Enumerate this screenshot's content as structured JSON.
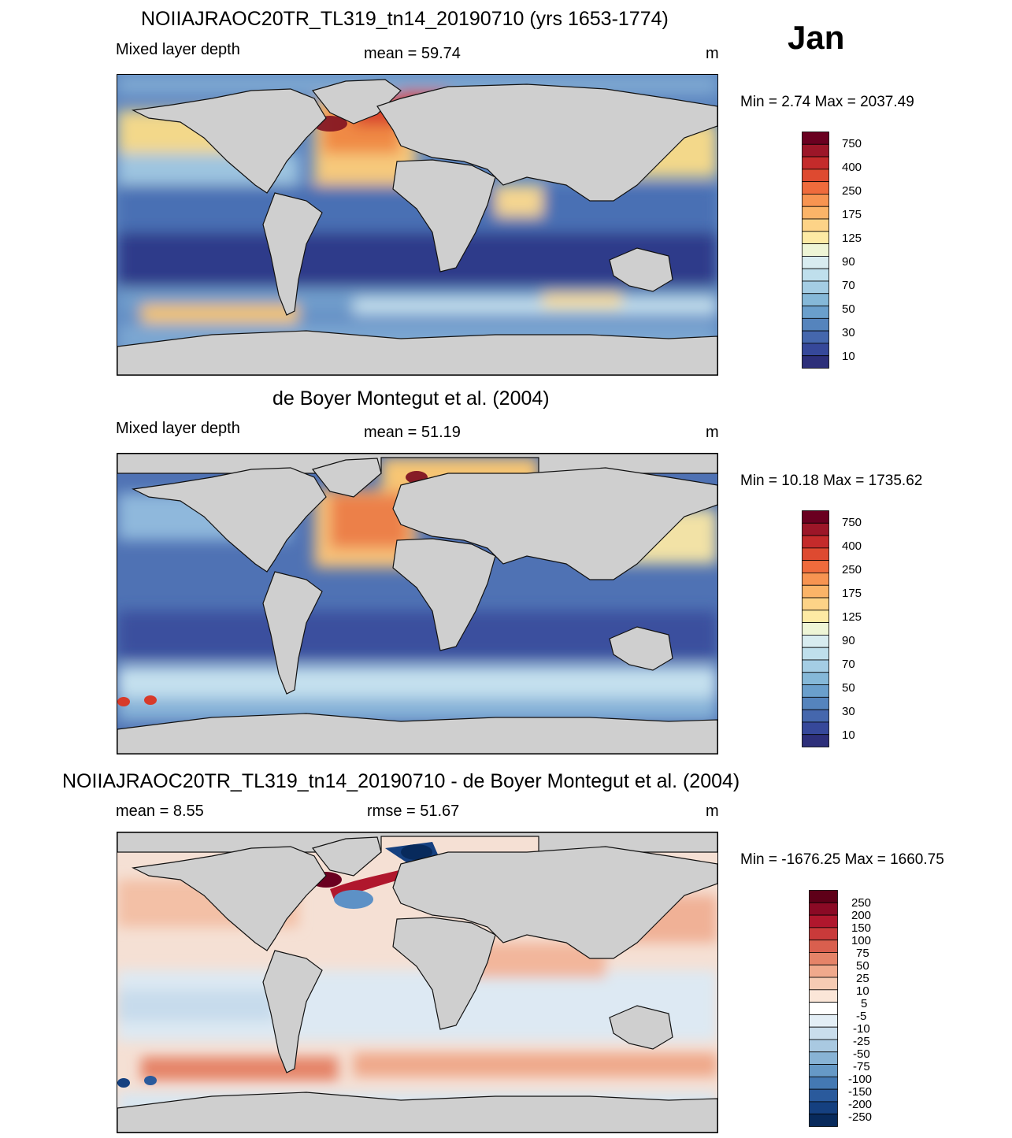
{
  "month": "Jan",
  "panels": [
    {
      "title": "NOIIAJRAOC20TR_TL319_tn14_20190710 (yrs 1653-1774)",
      "left_label": "Mixed layer depth",
      "center_label": "mean =  59.74",
      "right_label": "m",
      "minmax": "Min =   2.74 Max = 2037.49",
      "colorbar_labels": [
        "750",
        "400",
        "250",
        "175",
        "125",
        "90",
        "70",
        "50",
        "30",
        "10"
      ]
    },
    {
      "title": "de Boyer Montegut et al. (2004)",
      "left_label": "Mixed layer depth",
      "center_label": "mean =  51.19",
      "right_label": "m",
      "minmax": "Min =  10.18 Max = 1735.62",
      "colorbar_labels": [
        "750",
        "400",
        "250",
        "175",
        "125",
        "90",
        "70",
        "50",
        "30",
        "10"
      ]
    },
    {
      "title": "NOIIAJRAOC20TR_TL319_tn14_20190710 - de Boyer Montegut et al. (2004)",
      "left_label": "mean =   8.55",
      "center_label": "rmse =  51.67",
      "right_label": "m",
      "minmax": "Min = -1676.25 Max = 1660.75",
      "colorbar_labels": [
        "250",
        "200",
        "150",
        "100",
        "75",
        "50",
        "25",
        "10",
        "5",
        "-5",
        "-10",
        "-25",
        "-50",
        "-75",
        "-100",
        "-150",
        "-200",
        "-250"
      ]
    }
  ],
  "colors": {
    "land": "#cfcfcf",
    "mld_scale": [
      "#6a0020",
      "#9c1628",
      "#c42b2b",
      "#de4a30",
      "#ef6b3c",
      "#f79451",
      "#fbb468",
      "#fdd387",
      "#fdeaa4",
      "#eef5d6",
      "#d8ecf0",
      "#bfdfec",
      "#a4cde4",
      "#85b8d8",
      "#6a9fcc",
      "#5584bd",
      "#4567ad",
      "#36489a",
      "#2d2f7a"
    ],
    "diff_scale": [
      "#5e0018",
      "#8b0a25",
      "#b0172d",
      "#c93a3a",
      "#d95f4e",
      "#e58368",
      "#f0a98c",
      "#f6cbb3",
      "#fbe6d8",
      "#ffffff",
      "#e3eef6",
      "#c9ddec",
      "#a9c9e1",
      "#88b3d5",
      "#6699c6",
      "#4479b3",
      "#2a5a9c",
      "#154080",
      "#082a5c"
    ]
  }
}
